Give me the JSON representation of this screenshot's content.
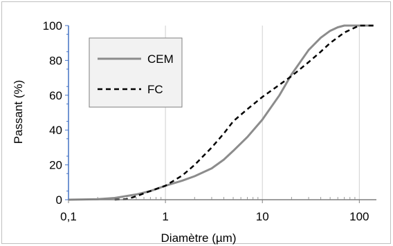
{
  "chart_data": {
    "type": "line",
    "xscale": "log",
    "xlim": [
      0.1,
      150
    ],
    "ylim": [
      0,
      100
    ],
    "xticks": [
      {
        "value": 0.1,
        "label": "0,1"
      },
      {
        "value": 1,
        "label": "1"
      },
      {
        "value": 10,
        "label": "10"
      },
      {
        "value": 100,
        "label": "100"
      }
    ],
    "yticks": [
      0,
      20,
      40,
      60,
      80,
      100
    ],
    "xlabel": "Diamètre (µm)",
    "ylabel": "Passant (%)",
    "grid": "vertical-major",
    "legend": "top-left",
    "series": [
      {
        "name": "CEM",
        "color": "#8c8c8c",
        "dash": "solid",
        "x": [
          0.1,
          0.2,
          0.3,
          0.5,
          0.7,
          1,
          1.5,
          2,
          3,
          4,
          5,
          7,
          10,
          15,
          20,
          30,
          40,
          50,
          60,
          70,
          80,
          100,
          140
        ],
        "y": [
          0,
          0.3,
          1,
          3,
          5,
          8,
          11,
          13.5,
          18,
          23,
          28,
          36,
          46,
          60,
          72,
          86,
          93,
          97,
          99,
          100,
          100,
          100,
          100
        ]
      },
      {
        "name": "FC",
        "color": "#000000",
        "dash": "dashed",
        "x": [
          0.3,
          0.4,
          0.5,
          0.7,
          1,
          1.5,
          2,
          3,
          4,
          5,
          7,
          10,
          15,
          20,
          30,
          40,
          50,
          70,
          100,
          140
        ],
        "y": [
          0,
          0.3,
          2,
          5,
          8,
          14,
          20,
          30,
          38,
          45,
          52,
          59,
          66,
          71,
          79,
          85,
          90,
          96,
          100,
          100
        ]
      }
    ]
  }
}
